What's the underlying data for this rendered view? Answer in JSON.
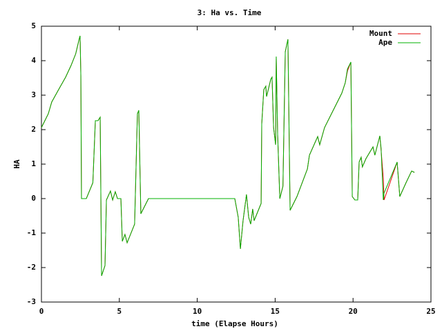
{
  "chart_data": {
    "type": "line",
    "title": "3: Ha vs. Time",
    "xlabel": "time (Elapse Hours)",
    "ylabel": "HA",
    "xlim": [
      0,
      25
    ],
    "xticks": [
      0,
      5,
      10,
      15,
      20,
      25
    ],
    "ylim": [
      -3,
      5
    ],
    "yticks": [
      -3,
      -2,
      -1,
      0,
      1,
      2,
      3,
      4,
      5
    ],
    "grid": false,
    "legend": "top-right",
    "x": [
      0,
      0.44,
      0.66,
      1.1,
      1.55,
      1.9,
      2.2,
      2.44,
      2.48,
      2.53,
      2.57,
      2.88,
      3.3,
      3.46,
      3.63,
      3.77,
      3.86,
      4.08,
      4.17,
      4.43,
      4.57,
      4.74,
      4.88,
      5.1,
      5.19,
      5.36,
      5.5,
      5.98,
      6.16,
      6.25,
      6.38,
      6.87,
      12.41,
      12.63,
      12.77,
      12.94,
      13.16,
      13.3,
      13.43,
      13.56,
      13.65,
      14.1,
      14.14,
      14.27,
      14.4,
      14.45,
      14.72,
      14.8,
      14.9,
      15.03,
      15.07,
      15.16,
      15.3,
      15.5,
      15.65,
      15.82,
      15.96,
      16.4,
      17.07,
      17.2,
      17.73,
      17.86,
      18.17,
      19.28,
      19.5,
      19.64,
      19.86,
      19.95,
      20.12,
      20.3,
      20.39,
      20.52,
      20.6,
      20.83,
      21.28,
      21.4,
      21.72,
      21.8,
      21.94,
      21.99,
      22.83,
      23.0,
      23.4,
      23.76,
      23.94
    ],
    "series": [
      {
        "name": "Mount",
        "color": "#e00000",
        "values": [
          2.06,
          2.46,
          2.8,
          3.16,
          3.52,
          3.86,
          4.2,
          4.66,
          4.72,
          3.56,
          0,
          0,
          0.46,
          2.26,
          2.26,
          2.36,
          -2.24,
          -1.94,
          -0.04,
          0.22,
          -0.04,
          0.2,
          0,
          0,
          -1.24,
          -1.04,
          -1.28,
          -0.74,
          2.46,
          2.56,
          -0.44,
          0,
          0,
          -0.54,
          -1.46,
          -0.64,
          0.12,
          -0.54,
          -0.74,
          -0.3,
          -0.64,
          -0.14,
          2.16,
          3.16,
          3.26,
          2.96,
          3.46,
          3.52,
          2.06,
          1.56,
          4.12,
          1.86,
          0,
          0.36,
          4.26,
          4.62,
          -0.34,
          0.06,
          0.86,
          1.26,
          1.8,
          1.56,
          2.06,
          3.06,
          3.36,
          3.7,
          3.96,
          0.06,
          -0.04,
          -0.04,
          1.06,
          1.2,
          0.92,
          1.16,
          1.5,
          1.26,
          1.82,
          1.4,
          0.6,
          -0.04,
          1.06,
          0.06,
          0.46,
          0.8,
          0.76
        ]
      },
      {
        "name": "Ape",
        "color": "#00b000",
        "values": [
          2.06,
          2.46,
          2.8,
          3.16,
          3.52,
          3.86,
          4.2,
          4.66,
          4.72,
          3.56,
          0,
          0,
          0.46,
          2.26,
          2.26,
          2.36,
          -2.24,
          -1.94,
          -0.04,
          0.22,
          -0.04,
          0.2,
          0,
          0,
          -1.24,
          -1.04,
          -1.28,
          -0.74,
          2.46,
          2.56,
          -0.44,
          0,
          0,
          -0.54,
          -1.46,
          -0.64,
          0.12,
          -0.54,
          -0.74,
          -0.3,
          -0.64,
          -0.14,
          2.16,
          3.16,
          3.26,
          2.96,
          3.46,
          3.52,
          2.06,
          1.56,
          4.12,
          1.86,
          0,
          0.36,
          4.26,
          4.62,
          -0.34,
          0.06,
          0.86,
          1.26,
          1.8,
          1.56,
          2.06,
          3.06,
          3.36,
          3.76,
          3.96,
          0.06,
          -0.04,
          -0.04,
          1.06,
          1.2,
          0.92,
          1.16,
          1.5,
          1.26,
          1.82,
          1.46,
          -0.04,
          0.16,
          1.06,
          0.06,
          0.46,
          0.8,
          0.76
        ]
      }
    ]
  }
}
